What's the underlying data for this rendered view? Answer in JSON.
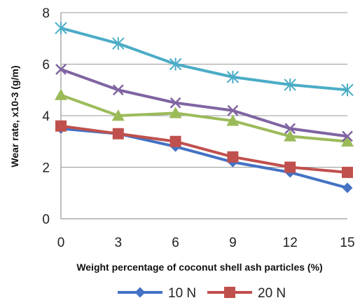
{
  "chart_data": {
    "type": "line",
    "xlabel": "Weight percentage of coconut shell ash particles (%)",
    "ylabel": "Wear rate, x10-3 (g/m)",
    "x": [
      0,
      3,
      6,
      9,
      12,
      15
    ],
    "ylim": [
      0,
      8
    ],
    "yticks": [
      0,
      2,
      4,
      6,
      8
    ],
    "grid": "horizontal",
    "legend": "bottom",
    "series": [
      {
        "name": "10 N",
        "color": "#4472C4",
        "marker": "diamond",
        "values": [
          3.5,
          3.3,
          2.8,
          2.2,
          1.8,
          1.2
        ]
      },
      {
        "name": "20 N",
        "color": "#C0504D",
        "marker": "square",
        "values": [
          3.6,
          3.3,
          3.0,
          2.4,
          2.0,
          1.8
        ]
      },
      {
        "name": "",
        "color": "#9BBB59",
        "marker": "triangle",
        "values": [
          4.8,
          4.0,
          4.1,
          3.8,
          3.2,
          3.0
        ]
      },
      {
        "name": "",
        "color": "#8064A2",
        "marker": "x",
        "values": [
          5.8,
          5.0,
          4.5,
          4.2,
          3.5,
          3.2
        ]
      },
      {
        "name": "",
        "color": "#4BACC6",
        "marker": "star",
        "values": [
          7.4,
          6.8,
          6.0,
          5.5,
          5.2,
          5.0
        ]
      }
    ]
  }
}
